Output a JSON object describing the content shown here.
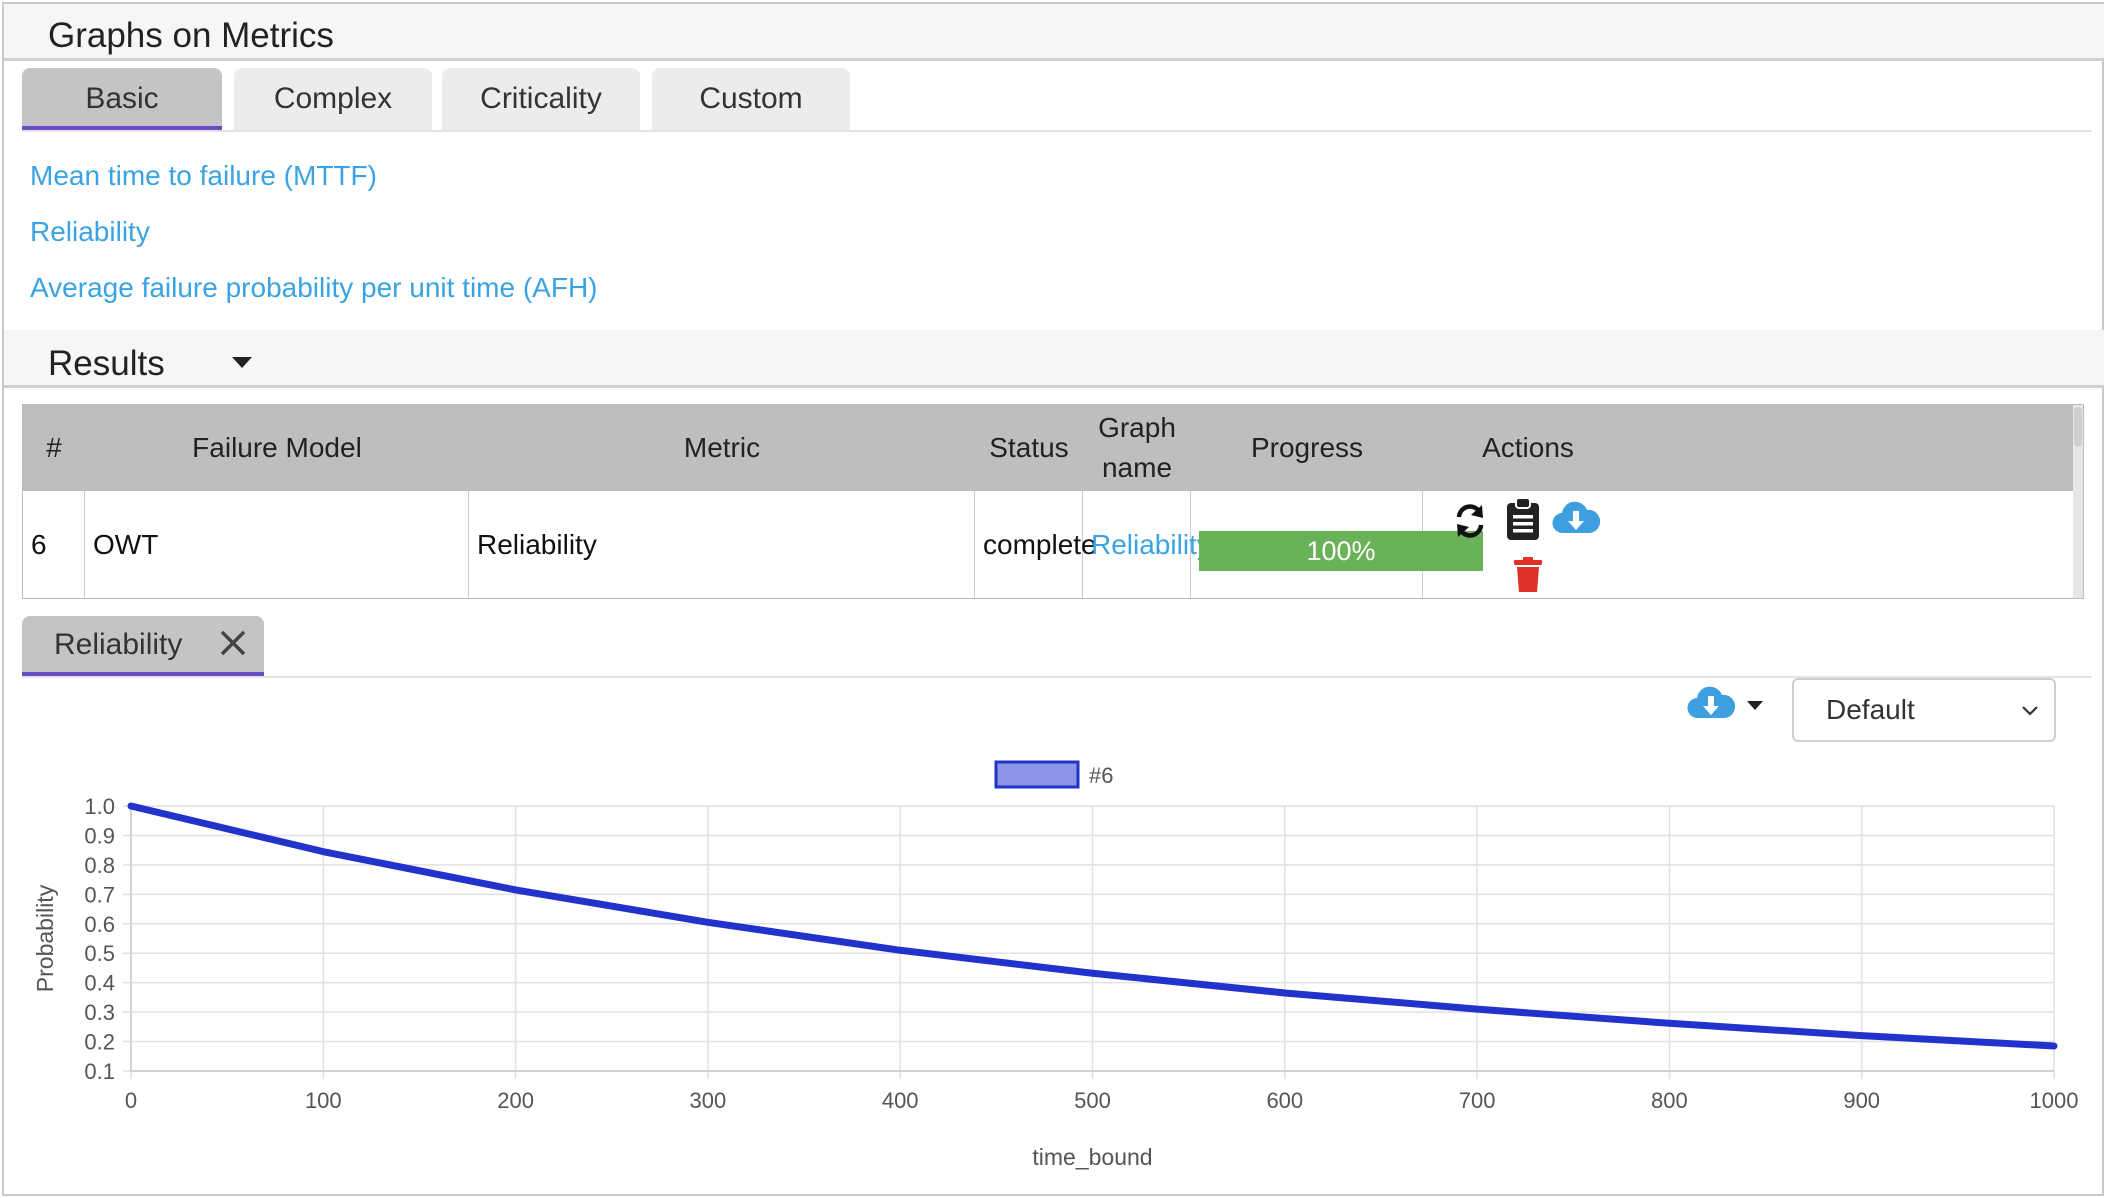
{
  "section1": {
    "title": "Graphs on Metrics"
  },
  "tabs": [
    {
      "label": "Basic",
      "active": true
    },
    {
      "label": "Complex",
      "active": false
    },
    {
      "label": "Criticality",
      "active": false
    },
    {
      "label": "Custom",
      "active": false
    }
  ],
  "metrics": [
    "Mean time to failure (MTTF)",
    "Reliability",
    "Average failure probability per unit time (AFH)"
  ],
  "section2": {
    "title": "Results"
  },
  "table": {
    "headers": {
      "num": "#",
      "failure_model": "Failure Model",
      "metric": "Metric",
      "status": "Status",
      "graph_name_line1": "Graph",
      "graph_name_line2": "name",
      "progress": "Progress",
      "actions": "Actions"
    },
    "rows": [
      {
        "num": "6",
        "failure_model": "OWT",
        "metric": "Reliability",
        "status": "complete",
        "graph_name": "Reliability",
        "progress": "100%",
        "progress_fraction": 1.0
      }
    ]
  },
  "chart_tab": {
    "label": "Reliability"
  },
  "chart_controls": {
    "scale_select": "Default",
    "scale_options": [
      "Default"
    ],
    "download_icon": "cloud-download-icon"
  },
  "icons": {
    "refresh": "refresh-icon",
    "clipboard": "clipboard-icon",
    "download": "cloud-download-icon",
    "delete": "trash-icon",
    "close": "close-icon"
  },
  "colors": {
    "link": "#3aa3e3",
    "progress": "#6ab257",
    "tab_underline": "#6a4dc6",
    "series_line": "#2233cc",
    "series_fill": "#8c94e8",
    "delete": "#e0302a"
  },
  "chart_data": {
    "type": "line",
    "legend": [
      "#6"
    ],
    "legend_position": "top-center",
    "xlabel": "time_bound",
    "ylabel": "Probability",
    "xlim": [
      0,
      1000
    ],
    "ylim": [
      0.1,
      1.0
    ],
    "xticks": [
      "0",
      "100",
      "200",
      "300",
      "400",
      "500",
      "600",
      "700",
      "800",
      "900",
      "1000"
    ],
    "yticks": [
      "1.0",
      "0.9",
      "0.8",
      "0.7",
      "0.6",
      "0.5",
      "0.4",
      "0.3",
      "0.2",
      "0.1"
    ],
    "grid": true,
    "series": [
      {
        "name": "#6",
        "x": [
          0,
          100,
          200,
          300,
          400,
          500,
          600,
          700,
          800,
          900,
          1000
        ],
        "y": [
          1.0,
          0.845,
          0.715,
          0.605,
          0.51,
          0.432,
          0.365,
          0.31,
          0.262,
          0.22,
          0.185
        ]
      }
    ]
  }
}
